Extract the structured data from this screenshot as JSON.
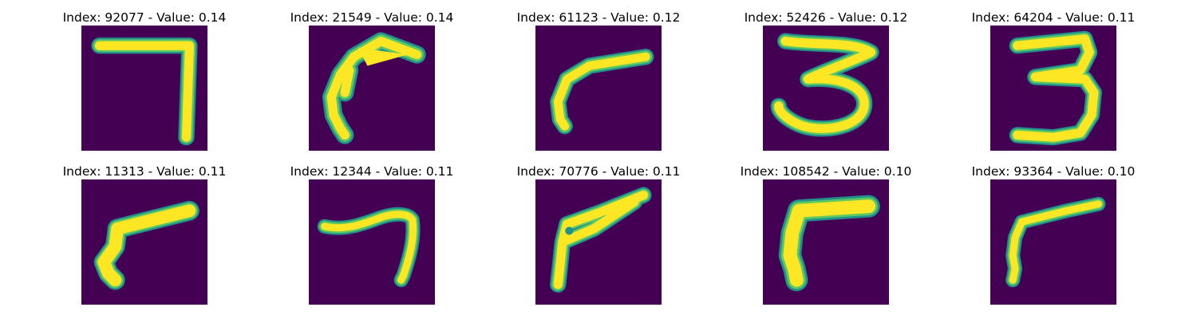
{
  "colors": {
    "background": "#440154",
    "stroke_edge": "#21918c",
    "stroke_mid": "#5ec962",
    "stroke_core": "#fde725"
  },
  "panels": [
    {
      "title": "Index: 92077 - Value: 0.14",
      "glyph": "seven"
    },
    {
      "title": "Index: 21549 - Value: 0.14",
      "glyph": "seven-curved"
    },
    {
      "title": "Index: 61123 - Value: 0.12",
      "glyph": "seven-slanted"
    },
    {
      "title": "Index: 52426 - Value: 0.12",
      "glyph": "three"
    },
    {
      "title": "Index: 64204 - Value: 0.11",
      "glyph": "three"
    },
    {
      "title": "Index: 11313 - Value: 0.11",
      "glyph": "seven-thick"
    },
    {
      "title": "Index: 12344 - Value: 0.11",
      "glyph": "seven-wave"
    },
    {
      "title": "Index: 70776 - Value: 0.11",
      "glyph": "seven-loop"
    },
    {
      "title": "Index: 108542 - Value: 0.10",
      "glyph": "seven-block"
    },
    {
      "title": "Index: 93364 - Value: 0.10",
      "glyph": "seven-thin"
    }
  ]
}
